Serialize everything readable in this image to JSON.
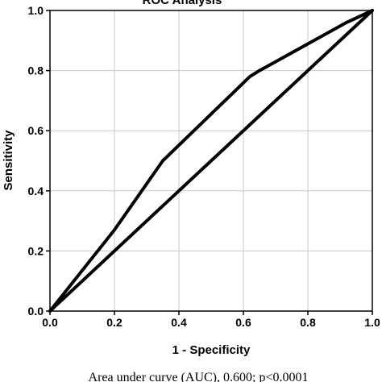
{
  "chart_data": {
    "type": "line",
    "title": "ROC Analysis",
    "xlabel": "1 - Specificity",
    "ylabel": "Sensitivity",
    "xlim": [
      0,
      1
    ],
    "ylim": [
      0,
      1
    ],
    "grid": true,
    "xticks": [
      "0.0",
      "0.2",
      "0.4",
      "0.6",
      "0.8",
      "1.0"
    ],
    "yticks": [
      "0.0",
      "0.2",
      "0.4",
      "0.6",
      "0.8",
      "1.0"
    ],
    "series": [
      {
        "x": [
          0.0,
          0.2,
          0.35,
          0.62,
          0.65,
          0.92,
          1.0
        ],
        "y": [
          0.0,
          0.27,
          0.5,
          0.78,
          0.8,
          0.96,
          1.0
        ]
      },
      {
        "x": [
          0.0,
          1.0
        ],
        "y": [
          0.0,
          1.0
        ]
      }
    ],
    "caption": "Area under curve (AUC), 0.600;  p<0.0001"
  }
}
